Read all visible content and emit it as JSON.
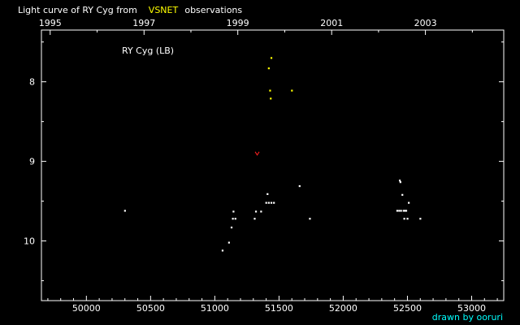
{
  "chart_data": {
    "type": "scatter",
    "title": {
      "prefix": "Light curve of RY Cyg from",
      "source": "VSNET",
      "suffix": "observations"
    },
    "label": "RY Cyg (LB)",
    "credit": "drawn by ooruri",
    "x_axis": {
      "range": [
        49650,
        53250
      ],
      "ticks": [
        50000,
        50500,
        51000,
        51500,
        52000,
        52500,
        53000
      ],
      "tick_labels": [
        "50000",
        "50500",
        "51000",
        "51500",
        "52000",
        "52500",
        "53000"
      ]
    },
    "year_axis": {
      "ticks": [
        {
          "jd": 49718,
          "label": "1995"
        },
        {
          "jd": 50449,
          "label": "1997"
        },
        {
          "jd": 51179,
          "label": "1999"
        },
        {
          "jd": 51910,
          "label": "2001"
        },
        {
          "jd": 52640,
          "label": "2003"
        }
      ]
    },
    "y_axis": {
      "range": [
        7.35,
        10.75
      ],
      "inverted": true,
      "ticks": [
        8,
        9,
        10
      ],
      "tick_labels": [
        "8",
        "9",
        "10"
      ]
    },
    "series": [
      {
        "kind": "visual",
        "color": "#ffffff",
        "marker": "dot",
        "points": [
          [
            50300,
            9.62
          ],
          [
            51060,
            10.12
          ],
          [
            51110,
            10.02
          ],
          [
            51130,
            9.83
          ],
          [
            51140,
            9.72
          ],
          [
            51145,
            9.63
          ],
          [
            51160,
            9.72
          ],
          [
            51310,
            9.72
          ],
          [
            51320,
            9.63
          ],
          [
            51360,
            9.63
          ],
          [
            51400,
            9.52
          ],
          [
            51410,
            9.41
          ],
          [
            51420,
            9.52
          ],
          [
            51440,
            9.52
          ],
          [
            51460,
            9.52
          ],
          [
            51660,
            9.31
          ],
          [
            51740,
            9.72
          ],
          [
            52420,
            9.62
          ],
          [
            52435,
            9.62
          ],
          [
            52440,
            9.24
          ],
          [
            52445,
            9.26
          ],
          [
            52450,
            9.62
          ],
          [
            52460,
            9.42
          ],
          [
            52470,
            9.62
          ],
          [
            52475,
            9.72
          ],
          [
            52480,
            9.62
          ],
          [
            52490,
            9.62
          ],
          [
            52500,
            9.72
          ],
          [
            52510,
            9.52
          ],
          [
            52600,
            9.72
          ]
        ]
      },
      {
        "kind": "visual-bright",
        "color": "#ffff00",
        "marker": "dot",
        "points": [
          [
            51420,
            7.83
          ],
          [
            51440,
            7.7
          ],
          [
            51430,
            8.11
          ],
          [
            51435,
            8.21
          ],
          [
            51600,
            8.11
          ]
        ]
      },
      {
        "kind": "fainter-than",
        "color": "#ff2020",
        "marker": "v",
        "points": [
          [
            51330,
            8.9
          ]
        ]
      }
    ],
    "colors": {
      "background": "#000000",
      "axis": "#ffffff",
      "text": "#ffffff",
      "highlight": "#ffff00",
      "credit": "#00ffff"
    }
  }
}
